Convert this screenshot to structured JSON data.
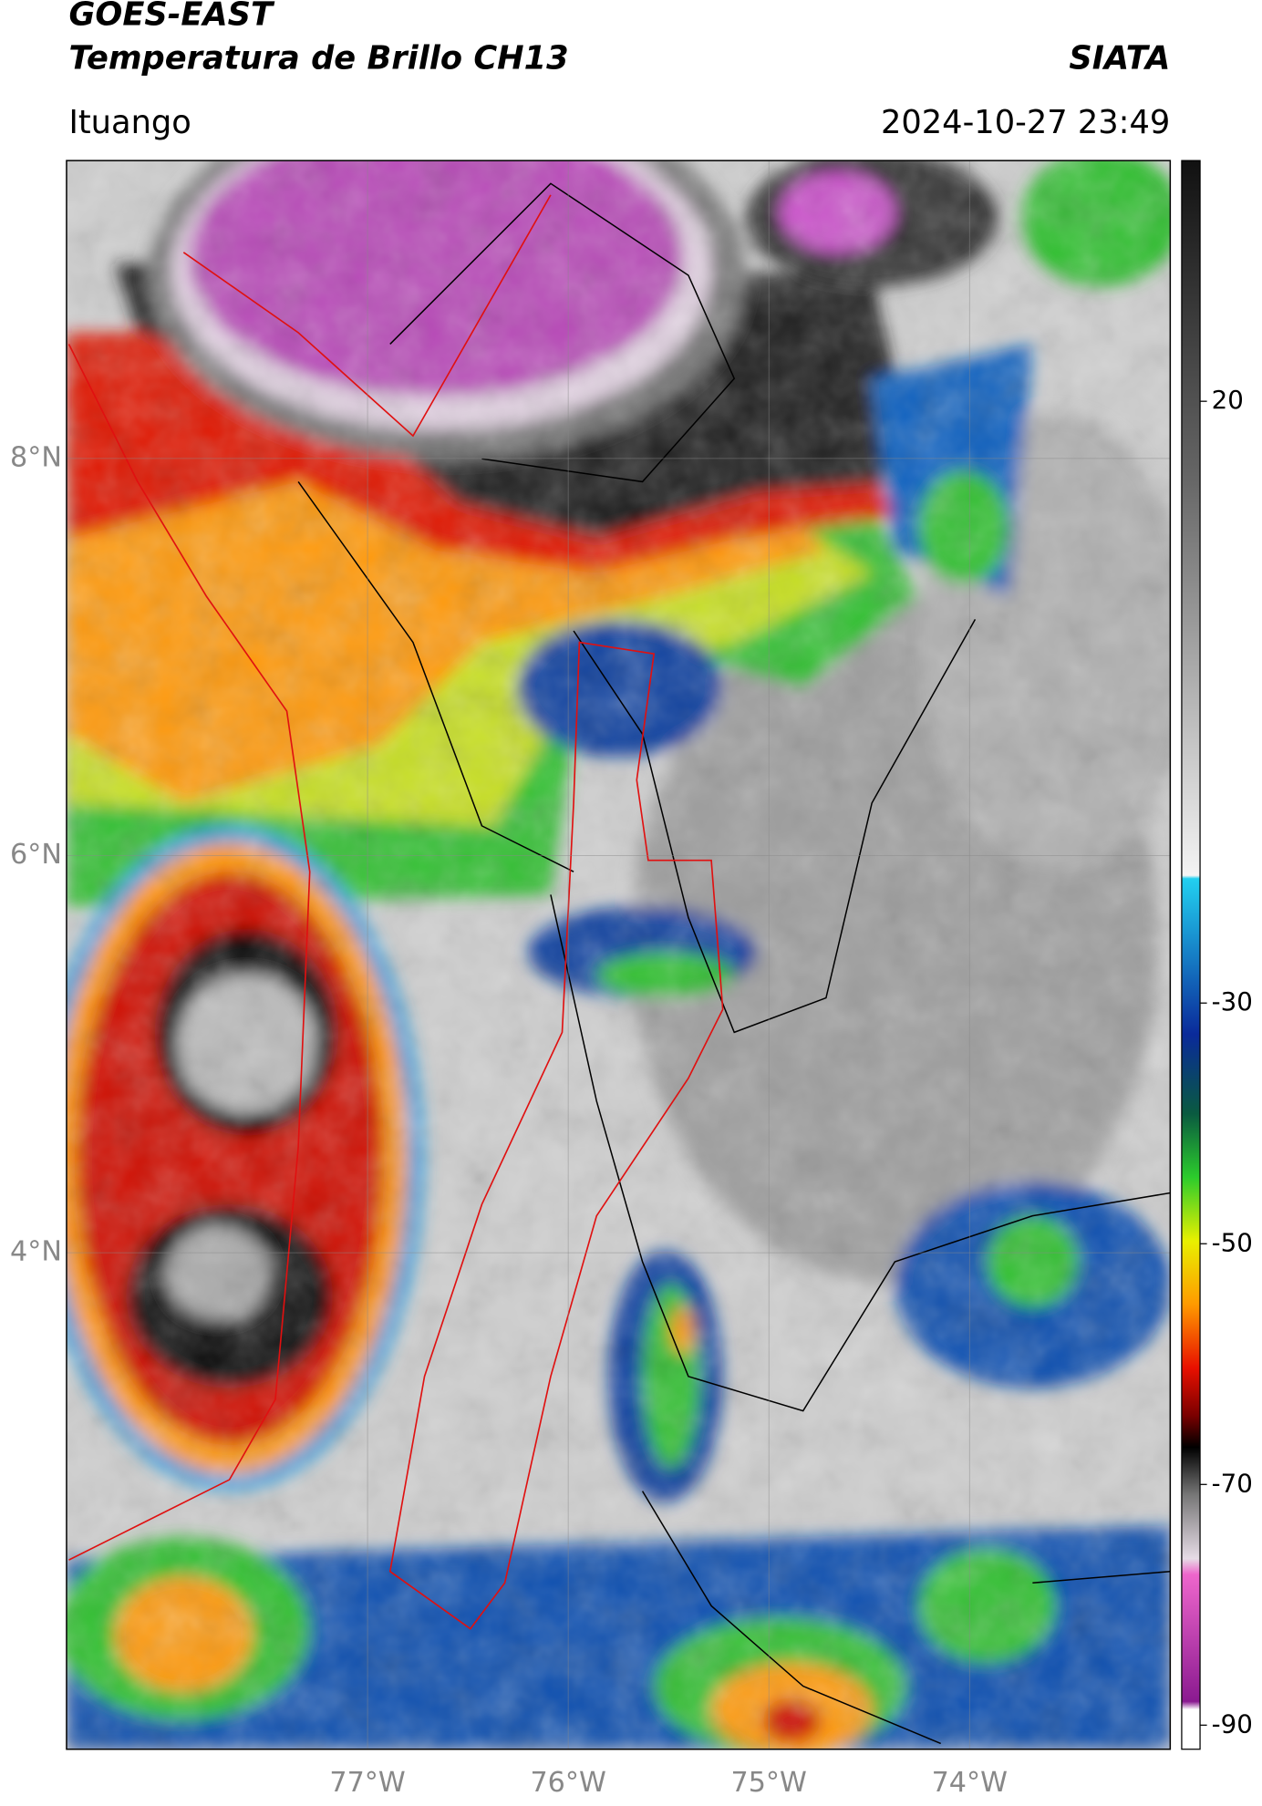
{
  "header": {
    "title": "GOES-EAST",
    "subtitle": "Temperatura de Brillo CH13",
    "source": "SIATA",
    "location": "Ituango",
    "datetime": "2024-10-27 23:49"
  },
  "map": {
    "xlim": [
      -78.5,
      -73
    ],
    "ylim": [
      1.5,
      9.5
    ],
    "xticks": [
      {
        "value": -77,
        "label": "77°W"
      },
      {
        "value": -76,
        "label": "76°W"
      },
      {
        "value": -75,
        "label": "75°W"
      },
      {
        "value": -74,
        "label": "74°W"
      }
    ],
    "yticks": [
      {
        "value": 8,
        "label": "8°N"
      },
      {
        "value": 6,
        "label": "6°N"
      },
      {
        "value": 4,
        "label": "4°N"
      }
    ],
    "grid": true
  },
  "colorbar": {
    "lim": [
      -92,
      40
    ],
    "ticks": [
      20,
      -30,
      -50,
      -70,
      -90
    ]
  }
}
